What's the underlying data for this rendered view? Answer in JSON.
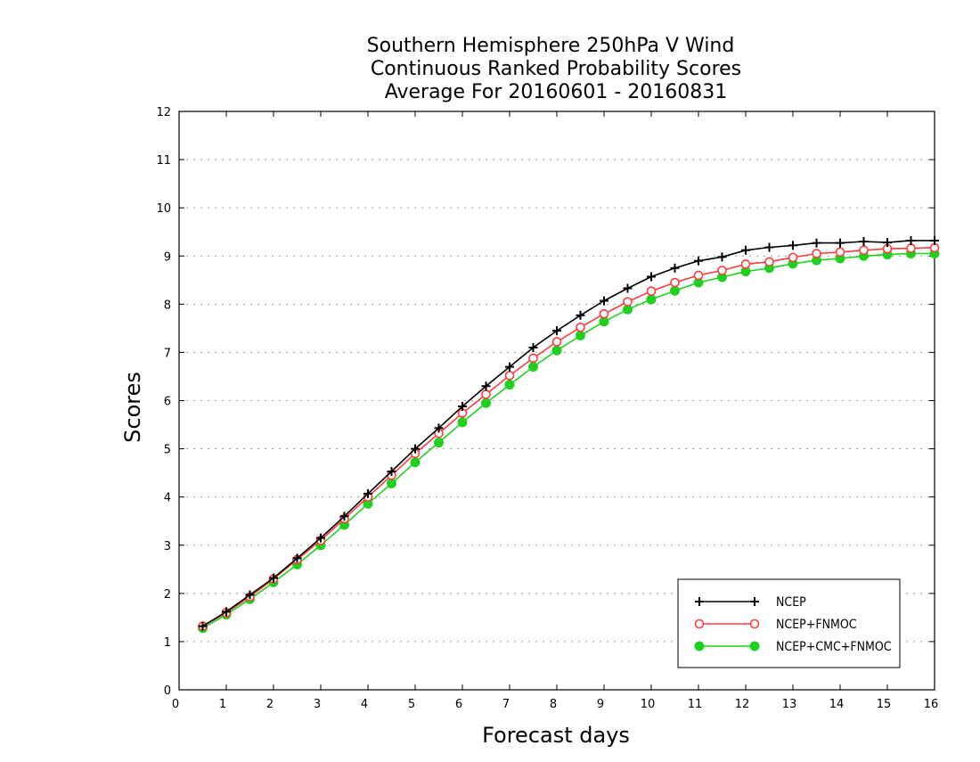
{
  "colors": {
    "NCEP": "#000000",
    "NCEP+FNMOC": "#ff3b3b",
    "NCEP+CMC+FNMOC": "#1fd11f",
    "grid": "#9a9a9a",
    "axis": "#000000"
  },
  "chart_data": {
    "type": "line",
    "title": [
      "Southern Hemisphere 250hPa V Wind",
      "Continuous Ranked Probability Scores",
      "Average For 20160601 - 20160831"
    ],
    "xlabel": "Forecast days",
    "ylabel": "Scores",
    "xlim": [
      0,
      16
    ],
    "ylim": [
      0,
      12
    ],
    "xticks": [
      0,
      1,
      2,
      3,
      4,
      5,
      6,
      7,
      8,
      9,
      10,
      11,
      12,
      13,
      14,
      15,
      16
    ],
    "yticks": [
      0,
      1,
      2,
      3,
      4,
      5,
      6,
      7,
      8,
      9,
      10,
      11,
      12
    ],
    "grid": "horizontal-dotted",
    "legend_position": "bottom-right",
    "x": [
      0.5,
      1,
      1.5,
      2,
      2.5,
      3,
      3.5,
      4,
      4.5,
      5,
      5.5,
      6,
      6.5,
      7,
      7.5,
      8,
      8.5,
      9,
      9.5,
      10,
      10.5,
      11,
      11.5,
      12,
      12.5,
      13,
      13.5,
      14,
      14.5,
      15,
      15.5,
      16
    ],
    "series": [
      {
        "name": "NCEP",
        "marker": "plus",
        "values": [
          1.32,
          1.62,
          1.97,
          2.32,
          2.73,
          3.15,
          3.6,
          4.07,
          4.53,
          5.0,
          5.43,
          5.88,
          6.3,
          6.7,
          7.1,
          7.45,
          7.77,
          8.07,
          8.33,
          8.57,
          8.75,
          8.9,
          8.98,
          9.12,
          9.18,
          9.22,
          9.27,
          9.27,
          9.3,
          9.28,
          9.32,
          9.32
        ]
      },
      {
        "name": "NCEP+FNMOC",
        "marker": "open-circle",
        "values": [
          1.32,
          1.6,
          1.93,
          2.3,
          2.7,
          3.1,
          3.55,
          4.0,
          4.45,
          4.9,
          5.32,
          5.74,
          6.13,
          6.52,
          6.88,
          7.22,
          7.52,
          7.8,
          8.05,
          8.27,
          8.45,
          8.6,
          8.7,
          8.83,
          8.88,
          8.97,
          9.05,
          9.08,
          9.12,
          9.15,
          9.16,
          9.17
        ]
      },
      {
        "name": "NCEP+CMC+FNMOC",
        "marker": "filled-circle",
        "values": [
          1.28,
          1.56,
          1.88,
          2.23,
          2.6,
          3.0,
          3.42,
          3.86,
          4.28,
          4.72,
          5.13,
          5.55,
          5.95,
          6.33,
          6.7,
          7.04,
          7.35,
          7.64,
          7.89,
          8.1,
          8.28,
          8.45,
          8.56,
          8.68,
          8.75,
          8.84,
          8.91,
          8.95,
          9.0,
          9.03,
          9.05,
          9.05
        ]
      }
    ]
  }
}
